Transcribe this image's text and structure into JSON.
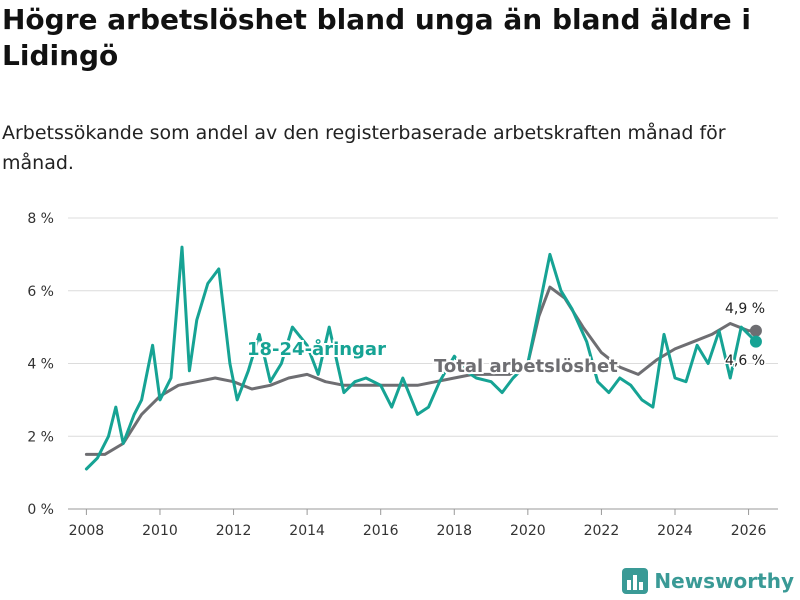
{
  "header": {
    "title": "Högre arbetslöshet bland unga än bland äldre i Lidingö",
    "subtitle": "Arbetssökande som andel av den registerbaserade arbetskraften månad för månad."
  },
  "brand": {
    "name": "Newsworthy",
    "icon": "bar-chart-icon",
    "color": "#3a9a96"
  },
  "chart_data": {
    "type": "line",
    "title": "Högre arbetslöshet bland unga än bland äldre i Lidingö",
    "xlim": [
      2007.5,
      2026.8
    ],
    "ylim": [
      0,
      8
    ],
    "x_ticks": [
      2008,
      2010,
      2012,
      2014,
      2016,
      2018,
      2020,
      2022,
      2024,
      2026
    ],
    "x_tick_labels": [
      "2008",
      "2010",
      "2012",
      "2014",
      "2016",
      "2018",
      "2020",
      "2022",
      "2024",
      "2026"
    ],
    "y_ticks": [
      0,
      2,
      4,
      6,
      8
    ],
    "y_tick_labels": [
      "0 %",
      "2 %",
      "4 %",
      "6 %",
      "8 %"
    ],
    "series": [
      {
        "name": "Total arbetslöshet",
        "label": "Total arbetslöshet",
        "color": "#6e6e72",
        "end_label": "4,9 %",
        "x": [
          2008.0,
          2008.5,
          2009.0,
          2009.5,
          2010.0,
          2010.5,
          2011.0,
          2011.5,
          2012.0,
          2012.5,
          2013.0,
          2013.5,
          2014.0,
          2014.5,
          2015.0,
          2015.5,
          2016.0,
          2016.5,
          2017.0,
          2017.5,
          2018.0,
          2018.5,
          2019.0,
          2019.5,
          2020.0,
          2020.3,
          2020.6,
          2021.0,
          2021.5,
          2022.0,
          2022.5,
          2023.0,
          2023.5,
          2024.0,
          2024.5,
          2025.0,
          2025.5,
          2026.0,
          2026.2
        ],
        "values": [
          1.5,
          1.5,
          1.8,
          2.6,
          3.1,
          3.4,
          3.5,
          3.6,
          3.5,
          3.3,
          3.4,
          3.6,
          3.7,
          3.5,
          3.4,
          3.4,
          3.4,
          3.4,
          3.4,
          3.5,
          3.6,
          3.7,
          3.7,
          3.7,
          4.0,
          5.3,
          6.1,
          5.8,
          5.0,
          4.3,
          3.9,
          3.7,
          4.1,
          4.4,
          4.6,
          4.8,
          5.1,
          4.9,
          4.9
        ]
      },
      {
        "name": "18-24-åringar",
        "label": "18-24-åringar",
        "color": "#16a394",
        "end_label": "4,6 %",
        "x": [
          2008.0,
          2008.3,
          2008.6,
          2008.8,
          2009.0,
          2009.3,
          2009.5,
          2009.8,
          2010.0,
          2010.3,
          2010.6,
          2010.8,
          2011.0,
          2011.3,
          2011.6,
          2011.9,
          2012.1,
          2012.4,
          2012.7,
          2013.0,
          2013.3,
          2013.6,
          2014.0,
          2014.3,
          2014.6,
          2015.0,
          2015.3,
          2015.6,
          2016.0,
          2016.3,
          2016.6,
          2017.0,
          2017.3,
          2017.6,
          2018.0,
          2018.3,
          2018.6,
          2019.0,
          2019.3,
          2019.6,
          2020.0,
          2020.3,
          2020.6,
          2020.9,
          2021.2,
          2021.6,
          2021.9,
          2022.2,
          2022.5,
          2022.8,
          2023.1,
          2023.4,
          2023.7,
          2024.0,
          2024.3,
          2024.6,
          2024.9,
          2025.2,
          2025.5,
          2025.8,
          2026.0,
          2026.2
        ],
        "values": [
          1.1,
          1.4,
          2.0,
          2.8,
          1.8,
          2.6,
          3.0,
          4.5,
          3.0,
          3.6,
          7.2,
          3.8,
          5.2,
          6.2,
          6.6,
          4.0,
          3.0,
          3.8,
          4.8,
          3.5,
          4.0,
          5.0,
          4.5,
          3.7,
          5.0,
          3.2,
          3.5,
          3.6,
          3.4,
          2.8,
          3.6,
          2.6,
          2.8,
          3.5,
          4.2,
          3.8,
          3.6,
          3.5,
          3.2,
          3.6,
          4.0,
          5.5,
          7.0,
          6.0,
          5.5,
          4.6,
          3.5,
          3.2,
          3.6,
          3.4,
          3.0,
          2.8,
          4.8,
          3.6,
          3.5,
          4.5,
          4.0,
          4.9,
          3.6,
          5.0,
          4.8,
          4.6
        ]
      }
    ]
  }
}
